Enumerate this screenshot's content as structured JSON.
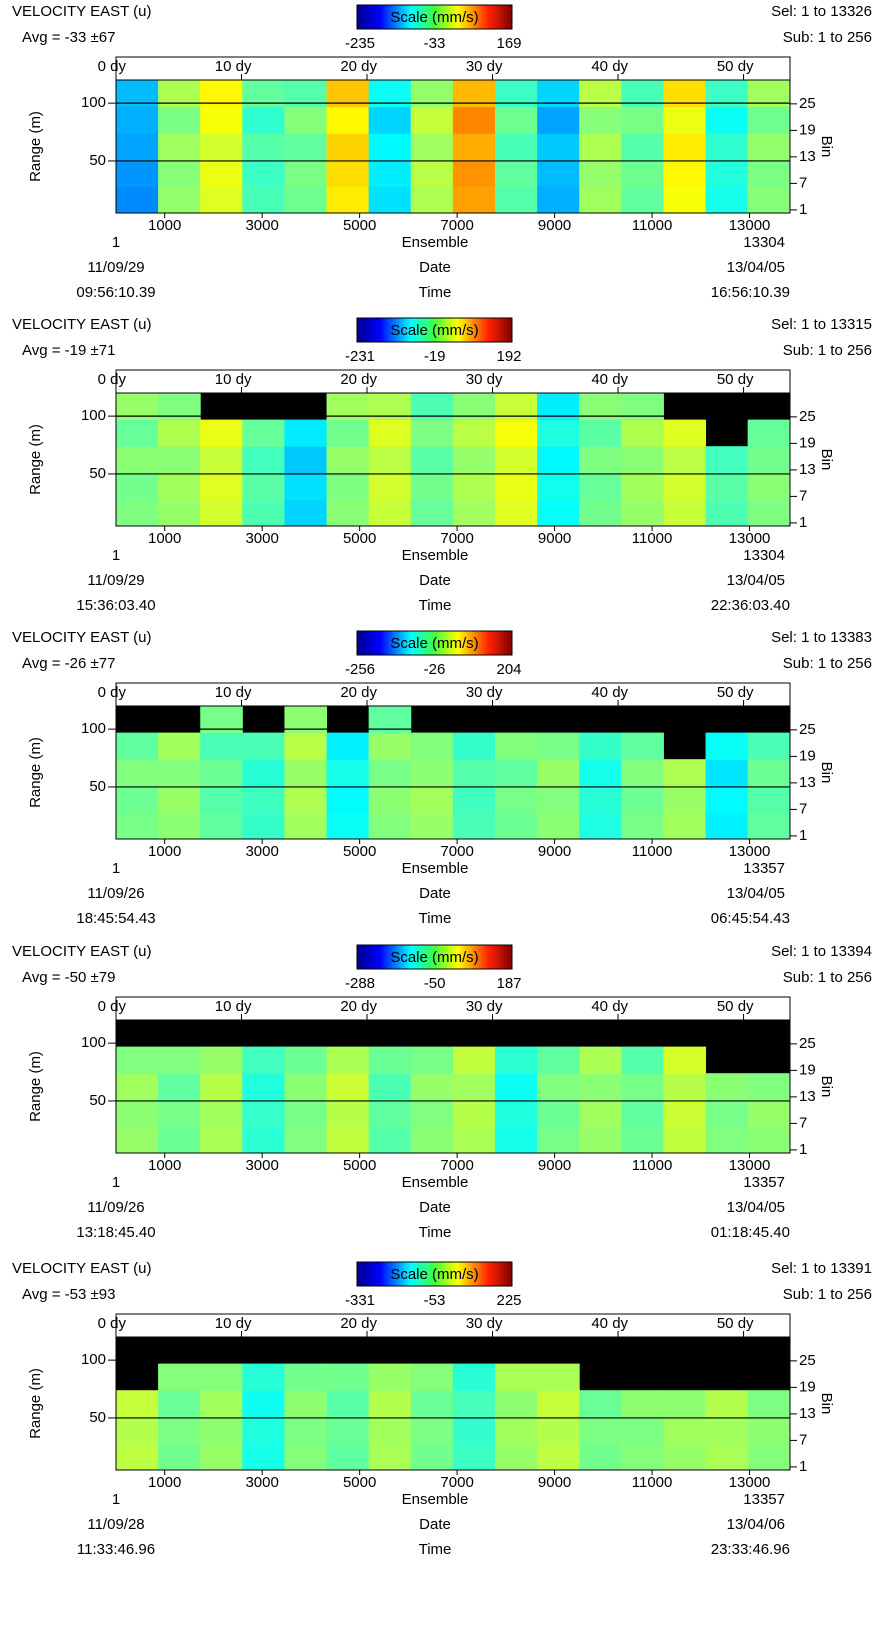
{
  "chart_data": [
    {
      "type": "heatmap",
      "title": "VELOCITY EAST (u)",
      "avg_label": "Avg = -33 ±67",
      "colorbar_label": "Scale (mm/s)",
      "colorbar_ticks": [
        -235,
        -33,
        169
      ],
      "sel_label": "Sel: 1 to 13326",
      "sub_label": "Sub: 1 to 256",
      "ylabel": "Range (m)",
      "ylim": [
        5,
        120
      ],
      "yticks": [
        50,
        100
      ],
      "y2label": "Bin",
      "y2lim": [
        0.3,
        30.4
      ],
      "y2ticks": [
        1,
        7,
        13,
        19,
        25
      ],
      "xlabel": "Ensemble",
      "xlim": [
        1,
        13830
      ],
      "xticks": [
        1000,
        3000,
        5000,
        7000,
        9000,
        11000,
        13000
      ],
      "x2lim": [
        0,
        53.7
      ],
      "x2ticks": [
        {
          "value": 0,
          "label": "0 dy"
        },
        {
          "value": 10,
          "label": "10 dy"
        },
        {
          "value": 20,
          "label": "20 dy"
        },
        {
          "value": 30,
          "label": "30 dy"
        },
        {
          "value": 40,
          "label": "40 dy"
        },
        {
          "value": 50,
          "label": "50 dy"
        }
      ],
      "ensemble_ends": [
        1,
        13304
      ],
      "date_label": "Date",
      "date_ends": [
        "11/09/29",
        "13/04/05"
      ],
      "time_label": "Time",
      "time_ends": [
        "09:56:10.39",
        "16:56:10.39"
      ],
      "grid": true,
      "x_edges": [
        1,
        865,
        1729,
        2593,
        3457,
        4321,
        5185,
        6049,
        6913,
        7777,
        8641,
        9505,
        10369,
        11233,
        12097,
        12961,
        13825
      ],
      "y_edges": [
        5,
        28,
        51,
        74,
        97,
        120
      ],
      "z": [
        [
          -130,
          -25,
          5,
          -55,
          -40,
          25,
          -95,
          -15,
          55,
          -50,
          -115,
          -20,
          -45,
          15,
          -75,
          -30
        ],
        [
          -125,
          -30,
          10,
          -60,
          -35,
          30,
          -90,
          -10,
          60,
          -45,
          -110,
          -25,
          -40,
          20,
          -70,
          -35
        ],
        [
          -120,
          -20,
          0,
          -50,
          -45,
          35,
          -85,
          -20,
          50,
          -55,
          -105,
          -15,
          -50,
          25,
          -65,
          -25
        ],
        [
          -115,
          -35,
          15,
          -65,
          -30,
          20,
          -100,
          -5,
          65,
          -40,
          -120,
          -30,
          -35,
          10,
          -80,
          -40
        ],
        [
          -110,
          -15,
          20,
          -45,
          -50,
          40,
          -80,
          -25,
          45,
          -60,
          -100,
          -10,
          -55,
          30,
          -60,
          -20
        ]
      ]
    },
    {
      "type": "heatmap",
      "title": "VELOCITY EAST (u)",
      "avg_label": "Avg = -19 ±71",
      "colorbar_label": "Scale (mm/s)",
      "colorbar_ticks": [
        -231,
        -19,
        192
      ],
      "sel_label": "Sel: 1 to 13315",
      "sub_label": "Sub: 1 to 256",
      "ylabel": "Range (m)",
      "ylim": [
        5,
        120
      ],
      "yticks": [
        50,
        100
      ],
      "y2label": "Bin",
      "y2lim": [
        0.3,
        30.4
      ],
      "y2ticks": [
        1,
        7,
        13,
        19,
        25
      ],
      "xlabel": "Ensemble",
      "xlim": [
        1,
        13830
      ],
      "xticks": [
        1000,
        3000,
        5000,
        7000,
        9000,
        11000,
        13000
      ],
      "x2lim": [
        0,
        53.7
      ],
      "x2ticks": [
        {
          "value": 0,
          "label": "0 dy"
        },
        {
          "value": 10,
          "label": "10 dy"
        },
        {
          "value": 20,
          "label": "20 dy"
        },
        {
          "value": 30,
          "label": "30 dy"
        },
        {
          "value": 40,
          "label": "40 dy"
        },
        {
          "value": 50,
          "label": "50 dy"
        }
      ],
      "ensemble_ends": [
        1,
        13304
      ],
      "date_label": "Date",
      "date_ends": [
        "11/09/29",
        "13/04/05"
      ],
      "time_label": "Time",
      "time_ends": [
        "15:36:03.40",
        "22:36:03.40"
      ],
      "grid": true,
      "x_edges": [
        1,
        865,
        1729,
        2593,
        3457,
        4321,
        5185,
        6049,
        6913,
        7777,
        8641,
        9505,
        10369,
        11233,
        12097,
        12961,
        13825
      ],
      "y_edges": [
        5,
        28,
        51,
        74,
        97,
        120
      ],
      "z": [
        [
          -20,
          -10,
          15,
          -40,
          -90,
          -15,
          10,
          -30,
          -5,
          20,
          -70,
          -25,
          -10,
          10,
          -40,
          -20
        ],
        [
          -25,
          -5,
          20,
          -35,
          -85,
          -20,
          15,
          -25,
          0,
          25,
          -65,
          -30,
          -5,
          15,
          -35,
          -15
        ],
        [
          -15,
          -15,
          10,
          -45,
          -95,
          -10,
          5,
          -35,
          -10,
          15,
          -75,
          -20,
          -15,
          5,
          -45,
          -25
        ],
        [
          -30,
          0,
          25,
          -30,
          -80,
          -25,
          20,
          -20,
          5,
          30,
          -60,
          -35,
          0,
          20,
          null,
          -30
        ],
        [
          -10,
          -20,
          null,
          null,
          null,
          -5,
          0,
          -40,
          -15,
          10,
          -80,
          -15,
          -20,
          null,
          null,
          null
        ]
      ]
    },
    {
      "type": "heatmap",
      "title": "VELOCITY EAST (u)",
      "avg_label": "Avg = -26 ±77",
      "colorbar_label": "Scale (mm/s)",
      "colorbar_ticks": [
        -256,
        -26,
        204
      ],
      "sel_label": "Sel: 1 to 13383",
      "sub_label": "Sub: 1 to 256",
      "ylabel": "Range (m)",
      "ylim": [
        5,
        120
      ],
      "yticks": [
        50,
        100
      ],
      "y2label": "Bin",
      "y2lim": [
        0.3,
        30.4
      ],
      "y2ticks": [
        1,
        7,
        13,
        19,
        25
      ],
      "xlabel": "Ensemble",
      "xlim": [
        1,
        13830
      ],
      "xticks": [
        1000,
        3000,
        5000,
        7000,
        9000,
        11000,
        13000
      ],
      "x2lim": [
        0,
        53.7
      ],
      "x2ticks": [
        {
          "value": 0,
          "label": "0 dy"
        },
        {
          "value": 10,
          "label": "10 dy"
        },
        {
          "value": 20,
          "label": "20 dy"
        },
        {
          "value": 30,
          "label": "30 dy"
        },
        {
          "value": 40,
          "label": "40 dy"
        },
        {
          "value": 50,
          "label": "50 dy"
        }
      ],
      "ensemble_ends": [
        1,
        13357
      ],
      "date_label": "Date",
      "date_ends": [
        "11/09/26",
        "13/04/05"
      ],
      "time_label": "Time",
      "time_ends": [
        "18:45:54.43",
        "06:45:54.43"
      ],
      "grid": true,
      "x_edges": [
        1,
        865,
        1729,
        2593,
        3457,
        4321,
        5185,
        6049,
        6913,
        7777,
        8641,
        9505,
        10369,
        11233,
        12097,
        12961,
        13825
      ],
      "y_edges": [
        5,
        28,
        51,
        74,
        97,
        120
      ],
      "z": [
        [
          -30,
          -20,
          -40,
          -60,
          -10,
          -80,
          -25,
          -15,
          -50,
          -35,
          -20,
          -70,
          -30,
          -10,
          -90,
          -40
        ],
        [
          -35,
          -15,
          -45,
          -55,
          -5,
          -85,
          -20,
          -10,
          -55,
          -30,
          -25,
          -65,
          -35,
          -15,
          -85,
          -45
        ],
        [
          -25,
          -25,
          -35,
          -65,
          -15,
          -75,
          -30,
          -20,
          -45,
          -40,
          -15,
          -75,
          -25,
          -5,
          -95,
          -35
        ],
        [
          -40,
          -10,
          -50,
          -50,
          0,
          -90,
          -15,
          -25,
          -60,
          -25,
          -30,
          -60,
          -40,
          null,
          -80,
          -50
        ],
        [
          null,
          null,
          -30,
          null,
          -20,
          null,
          -40,
          null,
          null,
          null,
          null,
          null,
          null,
          null,
          null,
          null
        ]
      ]
    },
    {
      "type": "heatmap",
      "title": "VELOCITY EAST (u)",
      "avg_label": "Avg = -50 ±79",
      "colorbar_label": "Scale (mm/s)",
      "colorbar_ticks": [
        -288,
        -50,
        187
      ],
      "sel_label": "Sel: 1 to 13394",
      "sub_label": "Sub: 1 to 256",
      "ylabel": "Range (m)",
      "ylim": [
        5,
        120
      ],
      "yticks": [
        50,
        100
      ],
      "y2label": "Bin",
      "y2lim": [
        0.3,
        30.4
      ],
      "y2ticks": [
        1,
        7,
        13,
        19,
        25
      ],
      "xlabel": "Ensemble",
      "xlim": [
        1,
        13830
      ],
      "xticks": [
        1000,
        3000,
        5000,
        7000,
        9000,
        11000,
        13000
      ],
      "x2lim": [
        0,
        53.7
      ],
      "x2ticks": [
        {
          "value": 0,
          "label": "0 dy"
        },
        {
          "value": 10,
          "label": "10 dy"
        },
        {
          "value": 20,
          "label": "20 dy"
        },
        {
          "value": 30,
          "label": "30 dy"
        },
        {
          "value": 40,
          "label": "40 dy"
        },
        {
          "value": 50,
          "label": "50 dy"
        }
      ],
      "ensemble_ends": [
        1,
        13357
      ],
      "date_label": "Date",
      "date_ends": [
        "11/09/26",
        "13/04/05"
      ],
      "time_label": "Time",
      "time_ends": [
        "13:18:45.40",
        "01:18:45.40"
      ],
      "grid": true,
      "x_edges": [
        1,
        865,
        1729,
        2593,
        3457,
        4321,
        5185,
        6049,
        6913,
        7777,
        8641,
        9505,
        10369,
        11233,
        12097,
        12961,
        13825
      ],
      "y_edges": [
        5,
        28,
        51,
        74,
        97,
        120
      ],
      "z": [
        [
          -40,
          -60,
          -30,
          -90,
          -50,
          -20,
          -70,
          -45,
          -30,
          -100,
          -55,
          -40,
          -60,
          -20,
          -50,
          -45
        ],
        [
          -45,
          -55,
          -35,
          -85,
          -55,
          -25,
          -65,
          -50,
          -25,
          -95,
          -60,
          -35,
          -65,
          -15,
          -55,
          -40
        ],
        [
          -35,
          -65,
          -25,
          -95,
          -45,
          -15,
          -75,
          -40,
          -35,
          -105,
          -50,
          -45,
          -55,
          -25,
          -45,
          -50
        ],
        [
          -50,
          -50,
          -40,
          -80,
          -60,
          -30,
          -60,
          -55,
          -20,
          -90,
          -65,
          -30,
          -70,
          -10,
          null,
          null
        ],
        [
          null,
          null,
          null,
          null,
          null,
          null,
          null,
          null,
          null,
          null,
          null,
          null,
          null,
          null,
          null,
          null
        ]
      ]
    },
    {
      "type": "heatmap",
      "title": "VELOCITY EAST (u)",
      "avg_label": "Avg = -53 ±93",
      "colorbar_label": "Scale (mm/s)",
      "colorbar_ticks": [
        -331,
        -53,
        225
      ],
      "sel_label": "Sel: 1 to 13391",
      "sub_label": "Sub: 1 to 256",
      "ylabel": "Range (m)",
      "ylim": [
        5,
        120
      ],
      "yticks": [
        50,
        100
      ],
      "y2label": "Bin",
      "y2lim": [
        0.3,
        30.4
      ],
      "y2ticks": [
        1,
        7,
        13,
        19,
        25
      ],
      "xlabel": "Ensemble",
      "xlim": [
        1,
        13830
      ],
      "xticks": [
        1000,
        3000,
        5000,
        7000,
        9000,
        11000,
        13000
      ],
      "x2lim": [
        0,
        53.7
      ],
      "x2ticks": [
        {
          "value": 0,
          "label": "0 dy"
        },
        {
          "value": 10,
          "label": "10 dy"
        },
        {
          "value": 20,
          "label": "20 dy"
        },
        {
          "value": 30,
          "label": "30 dy"
        },
        {
          "value": 40,
          "label": "40 dy"
        },
        {
          "value": 50,
          "label": "50 dy"
        }
      ],
      "ensemble_ends": [
        1,
        13357
      ],
      "date_label": "Date",
      "date_ends": [
        "11/09/28",
        "13/04/06"
      ],
      "time_label": "Time",
      "time_ends": [
        "11:33:46.96",
        "23:33:46.96"
      ],
      "grid": true,
      "x_edges": [
        1,
        865,
        1729,
        2593,
        3457,
        4321,
        5185,
        6049,
        6913,
        7777,
        8641,
        9505,
        10369,
        11233,
        12097,
        12961,
        13825
      ],
      "y_edges": [
        5,
        28,
        51,
        74,
        97,
        120
      ],
      "z": [
        [
          -20,
          -60,
          -40,
          -110,
          -50,
          -70,
          -30,
          -60,
          -90,
          -40,
          -20,
          -60,
          -50,
          -40,
          -30,
          -50
        ],
        [
          -25,
          -55,
          -45,
          -105,
          -55,
          -65,
          -35,
          -55,
          -95,
          -35,
          -25,
          -55,
          -55,
          -35,
          -35,
          -45
        ],
        [
          -15,
          -65,
          -35,
          -115,
          -45,
          -75,
          -25,
          -65,
          -85,
          -45,
          -15,
          -65,
          -45,
          -45,
          -25,
          -55
        ],
        [
          null,
          -50,
          -50,
          -100,
          -60,
          -60,
          -40,
          -50,
          -100,
          -30,
          -30,
          null,
          null,
          null,
          null,
          null
        ],
        [
          null,
          null,
          null,
          null,
          null,
          null,
          null,
          null,
          null,
          null,
          null,
          null,
          null,
          null,
          null,
          null
        ]
      ]
    }
  ]
}
